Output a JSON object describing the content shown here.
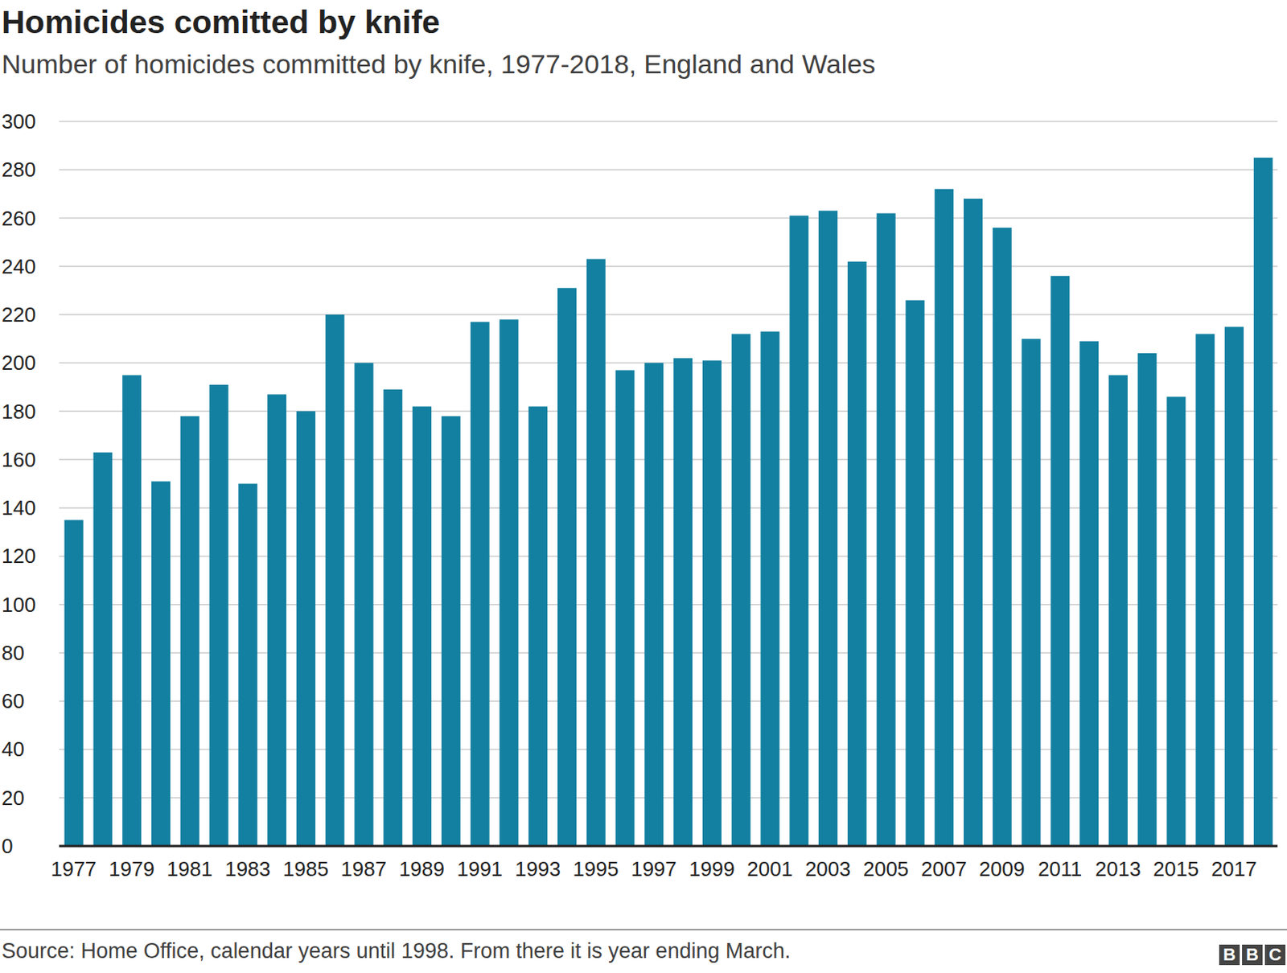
{
  "chart_data": {
    "type": "bar",
    "title": "Homicides comitted by knife",
    "subtitle": "Number of homicides committed by knife, 1977-2018, England and Wales",
    "categories": [
      "1977",
      null,
      "1979",
      null,
      "1981",
      null,
      "1983",
      null,
      "1985",
      null,
      "1987",
      null,
      "1989",
      null,
      "1991",
      null,
      "1993",
      null,
      "1995",
      null,
      "1997",
      null,
      "1999",
      null,
      "2001",
      null,
      "2003",
      null,
      "2005",
      null,
      "2007",
      null,
      "2009",
      null,
      "2011",
      null,
      "2013",
      null,
      "2015",
      null,
      "2017",
      null
    ],
    "values": [
      135,
      163,
      195,
      151,
      178,
      191,
      150,
      187,
      180,
      220,
      200,
      189,
      182,
      178,
      217,
      218,
      182,
      231,
      243,
      197,
      200,
      202,
      201,
      212,
      213,
      261,
      263,
      242,
      262,
      226,
      272,
      268,
      256,
      210,
      236,
      209,
      195,
      204,
      186,
      212,
      215,
      285
    ],
    "color": "#1380a1",
    "ylim": [
      0,
      300
    ],
    "yticks": [
      0,
      20,
      40,
      60,
      80,
      100,
      120,
      140,
      160,
      180,
      200,
      220,
      240,
      260,
      280,
      300
    ],
    "grid": true,
    "source": "Source: Home Office, calendar years until 1998. From there it is year ending March.",
    "logo": "BBC"
  }
}
